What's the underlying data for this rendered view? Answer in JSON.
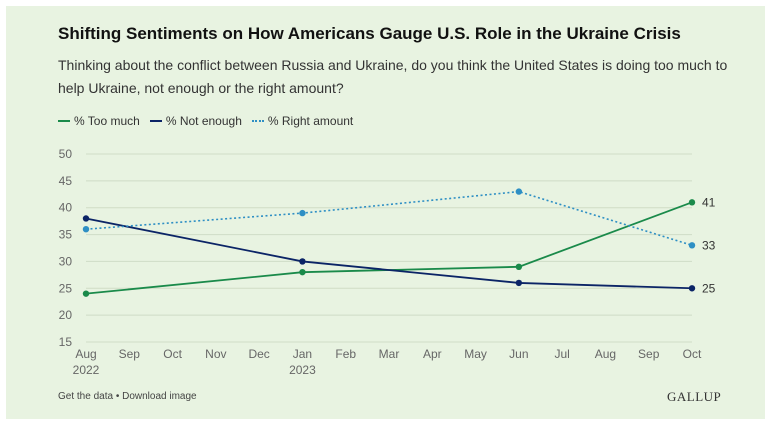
{
  "chart_data": {
    "type": "line",
    "title": "Shifting Sentiments on How Americans Gauge U.S. Role in the Ukraine Crisis",
    "subtitle": "Thinking about the conflict between Russia and Ukraine, do you think the United States is doing too much to help Ukraine, not enough or the right amount?",
    "x_ticks": [
      {
        "label": "Aug",
        "sub": "2022"
      },
      {
        "label": "Sep",
        "sub": ""
      },
      {
        "label": "Oct",
        "sub": ""
      },
      {
        "label": "Nov",
        "sub": ""
      },
      {
        "label": "Dec",
        "sub": ""
      },
      {
        "label": "Jan",
        "sub": "2023"
      },
      {
        "label": "Feb",
        "sub": ""
      },
      {
        "label": "Mar",
        "sub": ""
      },
      {
        "label": "Apr",
        "sub": ""
      },
      {
        "label": "May",
        "sub": ""
      },
      {
        "label": "Jun",
        "sub": ""
      },
      {
        "label": "Jul",
        "sub": ""
      },
      {
        "label": "Aug",
        "sub": ""
      },
      {
        "label": "Sep",
        "sub": ""
      },
      {
        "label": "Oct",
        "sub": ""
      }
    ],
    "x": [
      "Aug 2022",
      "Jan 2023",
      "Jun 2023",
      "Oct 2023"
    ],
    "ylim": [
      15,
      50
    ],
    "y_ticks": [
      15,
      20,
      25,
      30,
      35,
      40,
      45,
      50
    ],
    "grid": true,
    "legend_position": "top-left",
    "series": [
      {
        "name": "% Too much",
        "values": [
          24,
          28,
          29,
          41
        ],
        "color": "#1a8a4a",
        "style": "solid",
        "end_label": "41"
      },
      {
        "name": "% Not enough",
        "values": [
          38,
          30,
          26,
          25
        ],
        "color": "#0b2466",
        "style": "solid",
        "end_label": "25"
      },
      {
        "name": "% Right amount",
        "values": [
          36,
          39,
          43,
          33
        ],
        "color": "#2e8fc4",
        "style": "dotted",
        "end_label": "33"
      }
    ]
  },
  "footer": {
    "links_text": "Get the data • Download image",
    "brand": "GALLUP"
  }
}
